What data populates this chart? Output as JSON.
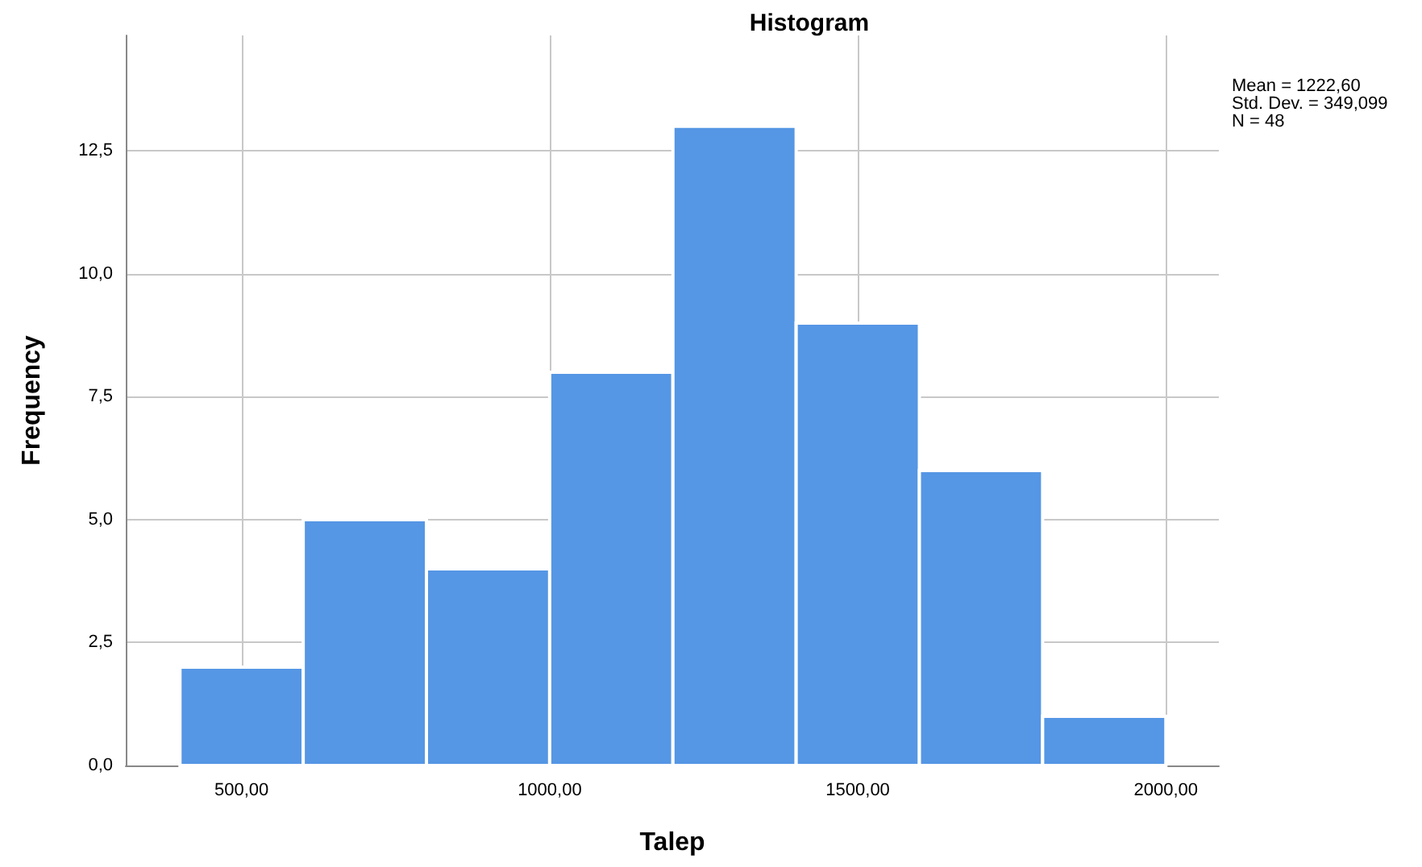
{
  "chart_data": {
    "type": "histogram",
    "title": "Histogram",
    "xlabel": "Talep",
    "ylabel": "Frequency",
    "bins": [
      400,
      600,
      800,
      1000,
      1200,
      1400,
      1600,
      1800,
      2000
    ],
    "values": [
      2,
      5,
      4,
      8,
      13,
      9,
      6,
      1
    ],
    "color": "#5596e5",
    "xlim": [
      312,
      2086
    ],
    "xticks": [
      {
        "value": 500,
        "label": "500,00"
      },
      {
        "value": 1000,
        "label": "1000,00"
      },
      {
        "value": 1500,
        "label": "1500,00"
      },
      {
        "value": 2000,
        "label": "2000,00"
      }
    ],
    "ylim": [
      0,
      14.85
    ],
    "yticks": [
      {
        "value": 0,
        "label": "0,0"
      },
      {
        "value": 2.5,
        "label": "2,5"
      },
      {
        "value": 5,
        "label": "5,0"
      },
      {
        "value": 7.5,
        "label": "7,5"
      },
      {
        "value": 10,
        "label": "10,0"
      },
      {
        "value": 12.5,
        "label": "12,5"
      }
    ],
    "grid": true,
    "annotations": [
      "Mean = 1222,60",
      "Std. Dev. = 349,099",
      "N = 48"
    ]
  }
}
